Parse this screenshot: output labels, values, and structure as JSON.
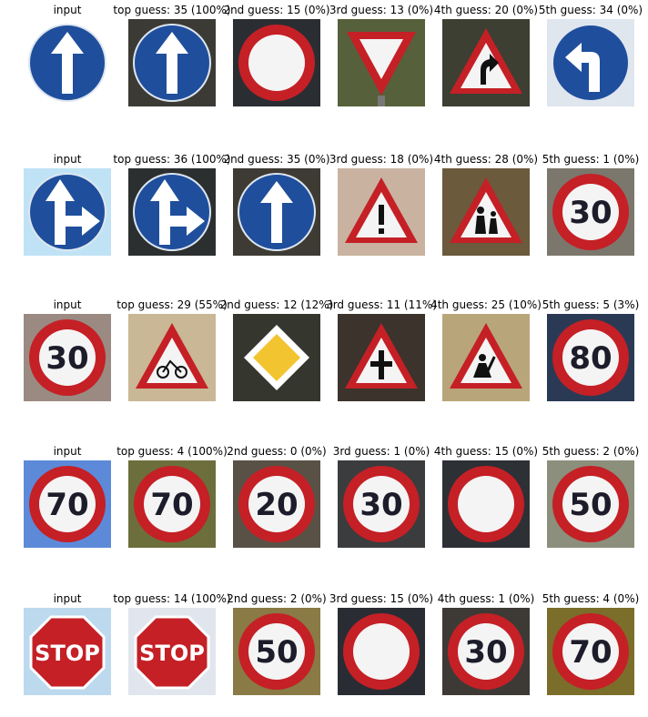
{
  "rows": [
    {
      "cells": [
        {
          "title": "input",
          "sign": "ahead-only",
          "bg": "#ffffff",
          "variant": "clean"
        },
        {
          "title": "top guess: 35 (100%)",
          "sign": "ahead-only",
          "bg": "#3b3a35"
        },
        {
          "title": "2nd guess: 15 (0%)",
          "sign": "no-vehicles",
          "bg": "#2a2e33"
        },
        {
          "title": "3rd guess: 13 (0%)",
          "sign": "yield",
          "bg": "#56603a"
        },
        {
          "title": "4th guess: 20 (0%)",
          "sign": "dangerous-curve-right",
          "bg": "#3c3f31"
        },
        {
          "title": "5th guess: 34 (0%)",
          "sign": "turn-left-ahead",
          "bg": "#dfe6ee"
        }
      ]
    },
    {
      "cells": [
        {
          "title": "input",
          "sign": "go-straight-or-right",
          "bg": "#bfe3f5",
          "variant": "clean"
        },
        {
          "title": "top guess: 36 (100%)",
          "sign": "go-straight-or-right",
          "bg": "#2c2f30"
        },
        {
          "title": "2nd guess: 35 (0%)",
          "sign": "ahead-only",
          "bg": "#3e3b35"
        },
        {
          "title": "3rd guess: 18 (0%)",
          "sign": "general-caution",
          "bg": "#c9b3a0"
        },
        {
          "title": "4th guess: 28 (0%)",
          "sign": "children-crossing",
          "bg": "#6b5a3b"
        },
        {
          "title": "5th guess: 1 (0%)",
          "sign": "speed-limit",
          "speed": "30",
          "bg": "#7b776d"
        }
      ]
    },
    {
      "cells": [
        {
          "title": "input",
          "sign": "speed-limit",
          "speed": "30",
          "bg": "#9a8a82",
          "variant": "clean"
        },
        {
          "title": "top guess: 29 (55%)",
          "sign": "bicycles-crossing",
          "bg": "#c9b795"
        },
        {
          "title": "2nd guess: 12 (12%)",
          "sign": "priority-road",
          "bg": "#35362e"
        },
        {
          "title": "3rd guess: 11 (11%)",
          "sign": "right-of-way",
          "bg": "#3b332c"
        },
        {
          "title": "4th guess: 25 (10%)",
          "sign": "road-work",
          "bg": "#b9a57a"
        },
        {
          "title": "5th guess: 5 (3%)",
          "sign": "speed-limit",
          "speed": "80",
          "bg": "#2a3a55"
        }
      ]
    },
    {
      "cells": [
        {
          "title": "input",
          "sign": "speed-limit",
          "speed": "70",
          "bg": "#5c8ad9",
          "variant": "clean"
        },
        {
          "title": "top guess: 4 (100%)",
          "sign": "speed-limit",
          "speed": "70",
          "bg": "#6c6e3b"
        },
        {
          "title": "2nd guess: 0 (0%)",
          "sign": "speed-limit",
          "speed": "20",
          "bg": "#5a5146"
        },
        {
          "title": "3rd guess: 1 (0%)",
          "sign": "speed-limit",
          "speed": "30",
          "bg": "#3a3c3e"
        },
        {
          "title": "4th guess: 15 (0%)",
          "sign": "no-vehicles",
          "bg": "#2d3035"
        },
        {
          "title": "5th guess: 2 (0%)",
          "sign": "speed-limit",
          "speed": "50",
          "bg": "#8b8f7c"
        }
      ]
    },
    {
      "cells": [
        {
          "title": "input",
          "sign": "stop",
          "bg": "#bcd9ee",
          "variant": "clean"
        },
        {
          "title": "top guess: 14 (100%)",
          "sign": "stop",
          "bg": "#e1e6ee"
        },
        {
          "title": "2nd guess: 2 (0%)",
          "sign": "speed-limit",
          "speed": "50",
          "bg": "#8a7a45"
        },
        {
          "title": "3rd guess: 15 (0%)",
          "sign": "no-vehicles",
          "bg": "#2a2c34"
        },
        {
          "title": "4th guess: 1 (0%)",
          "sign": "speed-limit",
          "speed": "30",
          "bg": "#3d3a36"
        },
        {
          "title": "5th guess: 4 (0%)",
          "sign": "speed-limit",
          "speed": "70",
          "bg": "#7b6e2a"
        }
      ]
    }
  ],
  "colors": {
    "red": "#c42026",
    "blue": "#1f4f9c",
    "white": "#f4f4f4",
    "dark": "#1c1c2a",
    "yellow": "#f2c430"
  }
}
